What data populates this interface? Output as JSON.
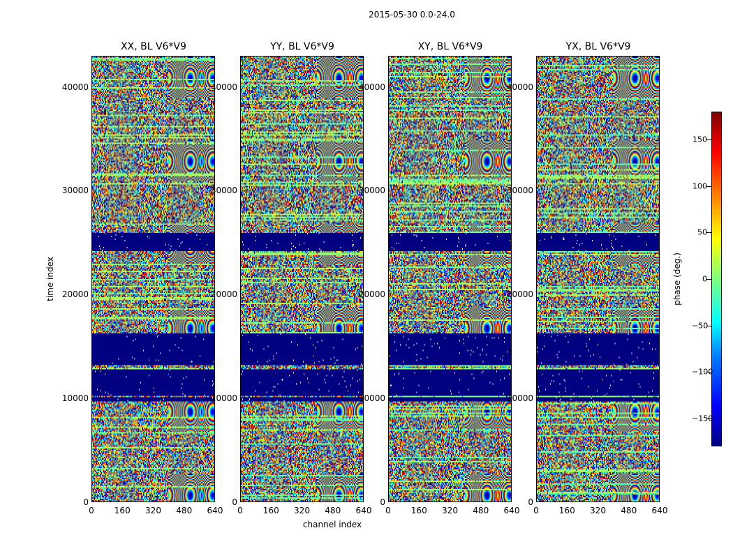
{
  "chart_data": {
    "type": "heatmap",
    "title": "2015-05-30 0.0-24.0",
    "xlabel": "channel index",
    "ylabel": "time index",
    "xlim": [
      0,
      640
    ],
    "ylim": [
      0,
      43000
    ],
    "x_ticks": [
      "0",
      "160",
      "320",
      "480",
      "640"
    ],
    "y_ticks": [
      "0",
      "10000",
      "20000",
      "30000",
      "40000"
    ],
    "panels": [
      {
        "name": "XX",
        "title": "XX, BL V6*V9"
      },
      {
        "name": "YY",
        "title": "YY, BL V6*V9"
      },
      {
        "name": "XY",
        "title": "XY, BL V6*V9"
      },
      {
        "name": "YX",
        "title": "YX, BL V6*V9"
      }
    ],
    "colorbar": {
      "label": "phase (deg.)",
      "range": [
        -180,
        180
      ],
      "ticks": [
        "150",
        "100",
        "50",
        "0",
        "−50",
        "−100",
        "−150"
      ],
      "tick_values": [
        150,
        100,
        50,
        0,
        -50,
        -100,
        -150
      ],
      "colormap": "jet"
    },
    "flagged_time_bands": [
      [
        9700,
        10100
      ],
      [
        10300,
        12800
      ],
      [
        13200,
        16300
      ],
      [
        24200,
        26000
      ]
    ]
  }
}
